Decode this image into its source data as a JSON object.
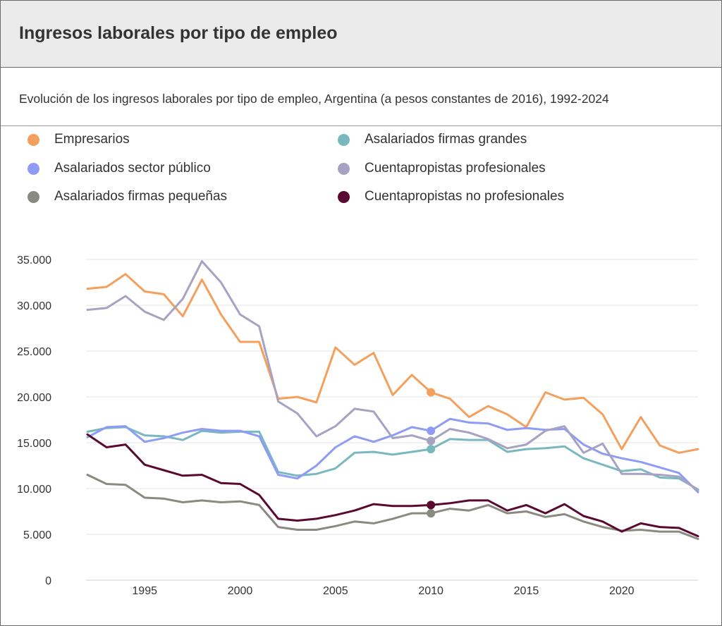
{
  "header": {
    "title": "Ingresos laborales por tipo de empleo",
    "subtitle": "Evolución de los ingresos laborales por tipo de empleo, Argentina (a pesos constantes de 2016), 1992-2024"
  },
  "legend": [
    {
      "label": "Empresarios",
      "color": "#f4a05c"
    },
    {
      "label": "Asalariados firmas grandes",
      "color": "#7ab8bf"
    },
    {
      "label": "Asalariados sector público",
      "color": "#8e9cf5"
    },
    {
      "label": "Cuentapropistas profesionales",
      "color": "#a6a2c2"
    },
    {
      "label": "Asalariados firmas pequeñas",
      "color": "#8a8a80"
    },
    {
      "label": "Cuentapropistas no profesionales",
      "color": "#5a0a2e"
    }
  ],
  "chart_data": {
    "type": "line",
    "x": [
      1992,
      1993,
      1994,
      1995,
      1996,
      1997,
      1998,
      1999,
      2000,
      2001,
      2002,
      2003,
      2004,
      2005,
      2006,
      2007,
      2008,
      2009,
      2010,
      2011,
      2012,
      2013,
      2014,
      2015,
      2016,
      2017,
      2018,
      2019,
      2020,
      2021,
      2022,
      2023,
      2024
    ],
    "xticks": [
      1995,
      2000,
      2005,
      2010,
      2015,
      2020
    ],
    "xlim": [
      1992,
      2024
    ],
    "yticks": [
      0,
      5000,
      10000,
      15000,
      20000,
      25000,
      30000,
      35000
    ],
    "ytick_labels": [
      "0",
      "5.000",
      "10.000",
      "15.000",
      "20.000",
      "25.000",
      "30.000",
      "35.000"
    ],
    "ylim": [
      0,
      35000
    ],
    "highlight_x": 2010,
    "grid": true,
    "legend_position": "top",
    "series": [
      {
        "name": "Empresarios",
        "color": "#f4a05c",
        "values": [
          31800,
          32000,
          33400,
          31500,
          31200,
          28800,
          32800,
          29000,
          26000,
          26000,
          19800,
          20000,
          19400,
          25400,
          23500,
          24800,
          20200,
          22400,
          20500,
          19800,
          17800,
          19000,
          18100,
          16700,
          20500,
          19700,
          19900,
          18100,
          14300,
          17800,
          14700,
          13900,
          14300
        ]
      },
      {
        "name": "Asalariados firmas grandes",
        "color": "#7ab8bf",
        "values": [
          16200,
          16600,
          16700,
          15800,
          15700,
          15300,
          16300,
          16100,
          16200,
          16200,
          11800,
          11400,
          11600,
          12200,
          13900,
          14000,
          13700,
          14000,
          14300,
          15400,
          15300,
          15300,
          14000,
          14300,
          14400,
          14600,
          13300,
          12600,
          11900,
          12100,
          11200,
          11100,
          9900
        ]
      },
      {
        "name": "Asalariados sector público",
        "color": "#8e9cf5",
        "values": [
          15600,
          16700,
          16800,
          15100,
          15500,
          16100,
          16500,
          16300,
          16300,
          15700,
          11500,
          11100,
          12500,
          14500,
          15700,
          15100,
          15800,
          16700,
          16300,
          17600,
          17200,
          17100,
          16400,
          16600,
          16400,
          16500,
          14800,
          13800,
          13300,
          12900,
          12300,
          11700,
          9600
        ]
      },
      {
        "name": "Cuentapropistas profesionales",
        "color": "#a6a2c2",
        "values": [
          29500,
          29700,
          31000,
          29300,
          28400,
          30700,
          34800,
          32500,
          29000,
          27700,
          19500,
          18200,
          15700,
          16800,
          18700,
          18400,
          15500,
          15800,
          15200,
          16500,
          16100,
          15400,
          14400,
          14800,
          16300,
          16800,
          13900,
          14900,
          11600,
          11600,
          11500,
          11300,
          9800
        ]
      },
      {
        "name": "Asalariados firmas pequeñas",
        "color": "#8a8a80",
        "values": [
          11500,
          10500,
          10400,
          9000,
          8900,
          8500,
          8700,
          8500,
          8600,
          8200,
          5800,
          5500,
          5500,
          5900,
          6400,
          6200,
          6700,
          7300,
          7300,
          7800,
          7600,
          8200,
          7300,
          7500,
          6900,
          7200,
          6400,
          5800,
          5400,
          5500,
          5300,
          5300,
          4500
        ]
      },
      {
        "name": "Cuentapropistas no profesionales",
        "color": "#5a0a2e",
        "values": [
          15900,
          14500,
          14800,
          12600,
          12000,
          11400,
          11500,
          10600,
          10500,
          9300,
          6700,
          6500,
          6700,
          7100,
          7600,
          8300,
          8100,
          8100,
          8200,
          8400,
          8700,
          8700,
          7600,
          8200,
          7300,
          8300,
          7000,
          6400,
          5300,
          6200,
          5800,
          5700,
          4800
        ]
      }
    ]
  }
}
